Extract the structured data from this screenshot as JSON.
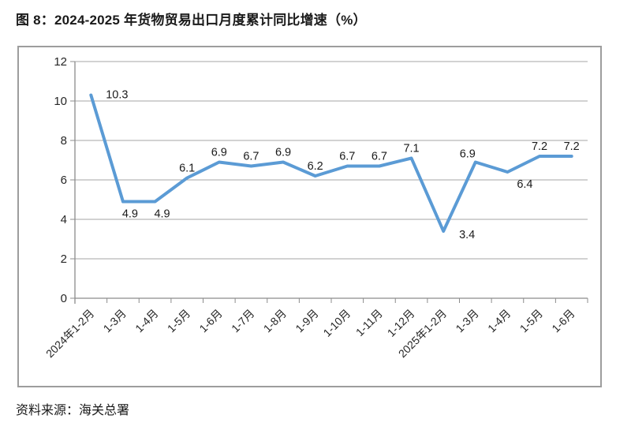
{
  "title": "图 8：2024-2025 年货物贸易出口月度累计同比增速（%）",
  "source": "资料来源：海关总署",
  "chart_data": {
    "type": "line",
    "title": "图 8：2024-2025 年货物贸易出口月度累计同比增速（%）",
    "categories": [
      "2024年1-2月",
      "1-3月",
      "1-4月",
      "1-5月",
      "1-6月",
      "1-7月",
      "1-8月",
      "1-9月",
      "1-10月",
      "1-11月",
      "1-12月",
      "2025年1-2月",
      "1-3月",
      "1-4月",
      "1-5月",
      "1-6月"
    ],
    "values": [
      10.3,
      4.9,
      4.9,
      6.1,
      6.9,
      6.7,
      6.9,
      6.2,
      6.7,
      6.7,
      7.1,
      3.4,
      6.9,
      6.4,
      7.2,
      7.2
    ],
    "y_ticks": [
      0,
      2,
      4,
      6,
      8,
      10,
      12
    ],
    "ylim": [
      0,
      12
    ],
    "xlabel": "",
    "ylabel": "",
    "grid": true,
    "legend": "none",
    "x_label_rotation": -45,
    "line_color": "#5B9BD5",
    "grid_color": "#A6A6A6",
    "axis_color": "#8c8c8c",
    "label_color": "#1a1a1a",
    "label_placements": [
      "right",
      "below",
      "below",
      "above",
      "above",
      "above",
      "above",
      "above",
      "above",
      "above",
      "above",
      "right-below",
      "above-left",
      "below-right",
      "above",
      "above"
    ]
  }
}
